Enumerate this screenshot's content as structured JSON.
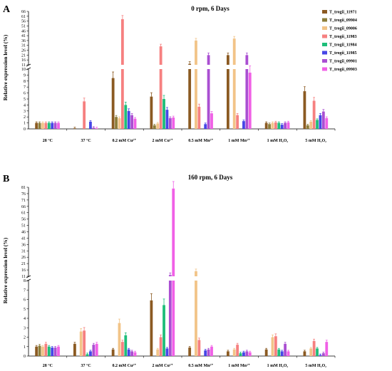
{
  "chart_data": [
    {
      "type": "bar",
      "panel_label": "A",
      "title": "0 rpm, 6 Days",
      "ylabel": "Relative expression level (%)",
      "xlabel": "",
      "y_axis_break": true,
      "ylim_lower": [
        0,
        10
      ],
      "ylim_upper": [
        11,
        66
      ],
      "yticks": [
        "0",
        "1",
        "2",
        "3",
        "4",
        "5",
        "6",
        "7",
        "8",
        "9",
        "10",
        "11",
        "16",
        "21",
        "26",
        "31",
        "36",
        "41",
        "46",
        "51",
        "56",
        "61",
        "66"
      ],
      "categories": [
        "28 °C",
        "37 °C",
        "0.2 mM Cu²⁺",
        "2 mM Cu²⁺",
        "0.5 mM Mn²⁺",
        "1 mM Mn²⁺",
        "1 mM H₂O₂",
        "5 mM H₂O₂"
      ],
      "legend_position": "top-right",
      "series": [
        {
          "name": "T_trogii_11971",
          "color": "#8b5a22",
          "values": [
            1.0,
            0.1,
            8.5,
            5.4,
            12.0,
            21.0,
            1.0,
            6.3
          ]
        },
        {
          "name": "T_trogii_09904",
          "color": "#8c7d3a",
          "values": [
            1.0,
            0.0,
            2.0,
            0.6,
            0.0,
            0.0,
            0.8,
            0.6
          ]
        },
        {
          "name": "T_trogii_09006",
          "color": "#f2c488",
          "values": [
            1.0,
            0.0,
            1.8,
            0.9,
            36.0,
            38.0,
            1.0,
            1.2
          ]
        },
        {
          "name": "T_trogii_11983",
          "color": "#f68080",
          "values": [
            1.0,
            4.6,
            58.0,
            30.0,
            3.7,
            2.3,
            1.1,
            4.7
          ]
        },
        {
          "name": "T_trogii_11984",
          "color": "#1ebe7a",
          "values": [
            1.0,
            0.0,
            4.0,
            5.0,
            0.0,
            0.0,
            1.0,
            1.5
          ]
        },
        {
          "name": "T_trogii_11985",
          "color": "#4646e6",
          "values": [
            1.0,
            1.2,
            3.0,
            3.2,
            0.8,
            1.3,
            0.7,
            2.3
          ]
        },
        {
          "name": "T_trogii_09901",
          "color": "#aa4fd2",
          "values": [
            1.0,
            0.2,
            2.3,
            1.8,
            21.0,
            21.0,
            1.0,
            2.9
          ]
        },
        {
          "name": "T_trogii_09903",
          "color": "#f060e6",
          "values": [
            1.0,
            0.1,
            1.7,
            1.9,
            2.6,
            9.4,
            1.1,
            1.8
          ]
        }
      ]
    },
    {
      "type": "bar",
      "panel_label": "B",
      "title": "160 rpm, 6 Days",
      "ylabel": "Relative expression level (%)",
      "xlabel": "",
      "y_axis_break": true,
      "ylim_lower": [
        0,
        8
      ],
      "ylim_upper": [
        11,
        81
      ],
      "yticks": [
        "0",
        "1",
        "2",
        "3",
        "4",
        "5",
        "6",
        "7",
        "8",
        "11",
        "16",
        "21",
        "26",
        "31",
        "36",
        "41",
        "46",
        "51",
        "56",
        "61",
        "66",
        "71",
        "76",
        "81"
      ],
      "categories": [
        "28 °C",
        "37 °C",
        "0.2 mM Cu²⁺",
        "2 mM Cu²⁺",
        "0.5 mM Mn²⁺",
        "1 mM Mn²⁺",
        "1 mM H₂O₂",
        "5 mM H₂O₂"
      ],
      "series": [
        {
          "name": "T_trogii_11971",
          "color": "#8b5a22",
          "values": [
            1.0,
            1.3,
            0.7,
            5.9,
            0.9,
            0.5,
            0.7,
            0.5
          ]
        },
        {
          "name": "T_trogii_09904",
          "color": "#8c7d3a",
          "values": [
            1.1,
            0.0,
            0.0,
            0.0,
            0.0,
            0.0,
            0.0,
            0.0
          ]
        },
        {
          "name": "T_trogii_09006",
          "color": "#f2c488",
          "values": [
            1.0,
            2.6,
            3.5,
            0.7,
            15.0,
            0.7,
            2.0,
            0.8
          ]
        },
        {
          "name": "T_trogii_11983",
          "color": "#f68080",
          "values": [
            1.3,
            2.7,
            1.5,
            2.0,
            1.7,
            1.2,
            2.1,
            1.6
          ]
        },
        {
          "name": "T_trogii_11984",
          "color": "#1ebe7a",
          "values": [
            1.0,
            0.2,
            2.2,
            5.4,
            0.0,
            0.3,
            0.7,
            0.8
          ]
        },
        {
          "name": "T_trogii_11985",
          "color": "#4646e6",
          "values": [
            0.9,
            0.5,
            0.7,
            0.8,
            0.6,
            0.4,
            0.5,
            0.1
          ]
        },
        {
          "name": "T_trogii_09901",
          "color": "#aa4fd2",
          "values": [
            0.9,
            1.2,
            0.5,
            12.0,
            0.7,
            0.5,
            1.3,
            0.3
          ]
        },
        {
          "name": "T_trogii_09903",
          "color": "#f060e6",
          "values": [
            1.0,
            1.3,
            0.4,
            80.0,
            1.0,
            0.4,
            0.5,
            1.5
          ]
        }
      ]
    }
  ]
}
